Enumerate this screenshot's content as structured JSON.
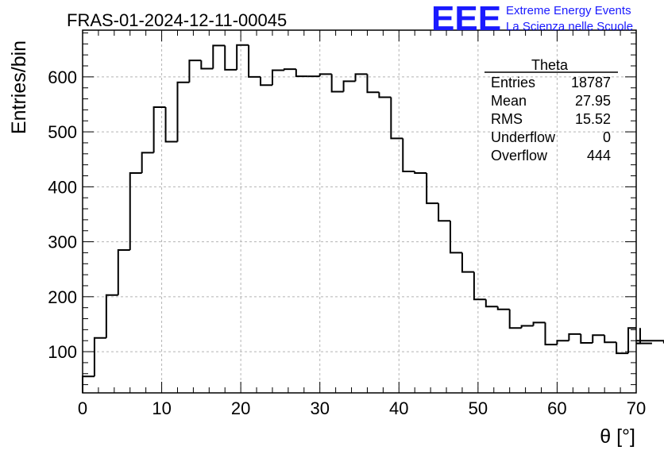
{
  "header": {
    "title": "FRAS-01-2024-12-11-00045",
    "logo_text": "EEE",
    "logo_line1": "Extreme Energy Events",
    "logo_line2": "La Scienza nelle Scuole",
    "logo_color": "#1a1aff"
  },
  "stats": {
    "name": "Theta",
    "rows": [
      {
        "label": "Entries",
        "value": "18787"
      },
      {
        "label": "Mean",
        "value": "27.95"
      },
      {
        "label": "RMS",
        "value": "15.52"
      },
      {
        "label": "Underflow",
        "value": "0"
      },
      {
        "label": "Overflow",
        "value": "444"
      }
    ]
  },
  "chart_data": {
    "type": "histogram",
    "xlabel": "θ [°]",
    "ylabel": "Entries/bin",
    "xlim": [
      0,
      70
    ],
    "ylim": [
      25,
      685
    ],
    "grid": true,
    "x_ticks": [
      0,
      10,
      20,
      30,
      40,
      50,
      60,
      70
    ],
    "y_ticks": [
      100,
      200,
      300,
      400,
      500,
      600
    ],
    "bin_width": 1.5,
    "bin_edges_start": 0,
    "values": [
      55,
      125,
      203,
      285,
      425,
      462,
      545,
      482,
      590,
      630,
      615,
      657,
      613,
      658,
      600,
      585,
      612,
      614,
      601,
      601,
      605,
      573,
      592,
      605,
      572,
      563,
      488,
      428,
      425,
      370,
      338,
      280,
      245,
      195,
      182,
      177,
      143,
      147,
      153,
      113,
      120,
      132,
      116,
      130,
      117,
      97,
      143,
      115,
      115,
      120
    ]
  }
}
